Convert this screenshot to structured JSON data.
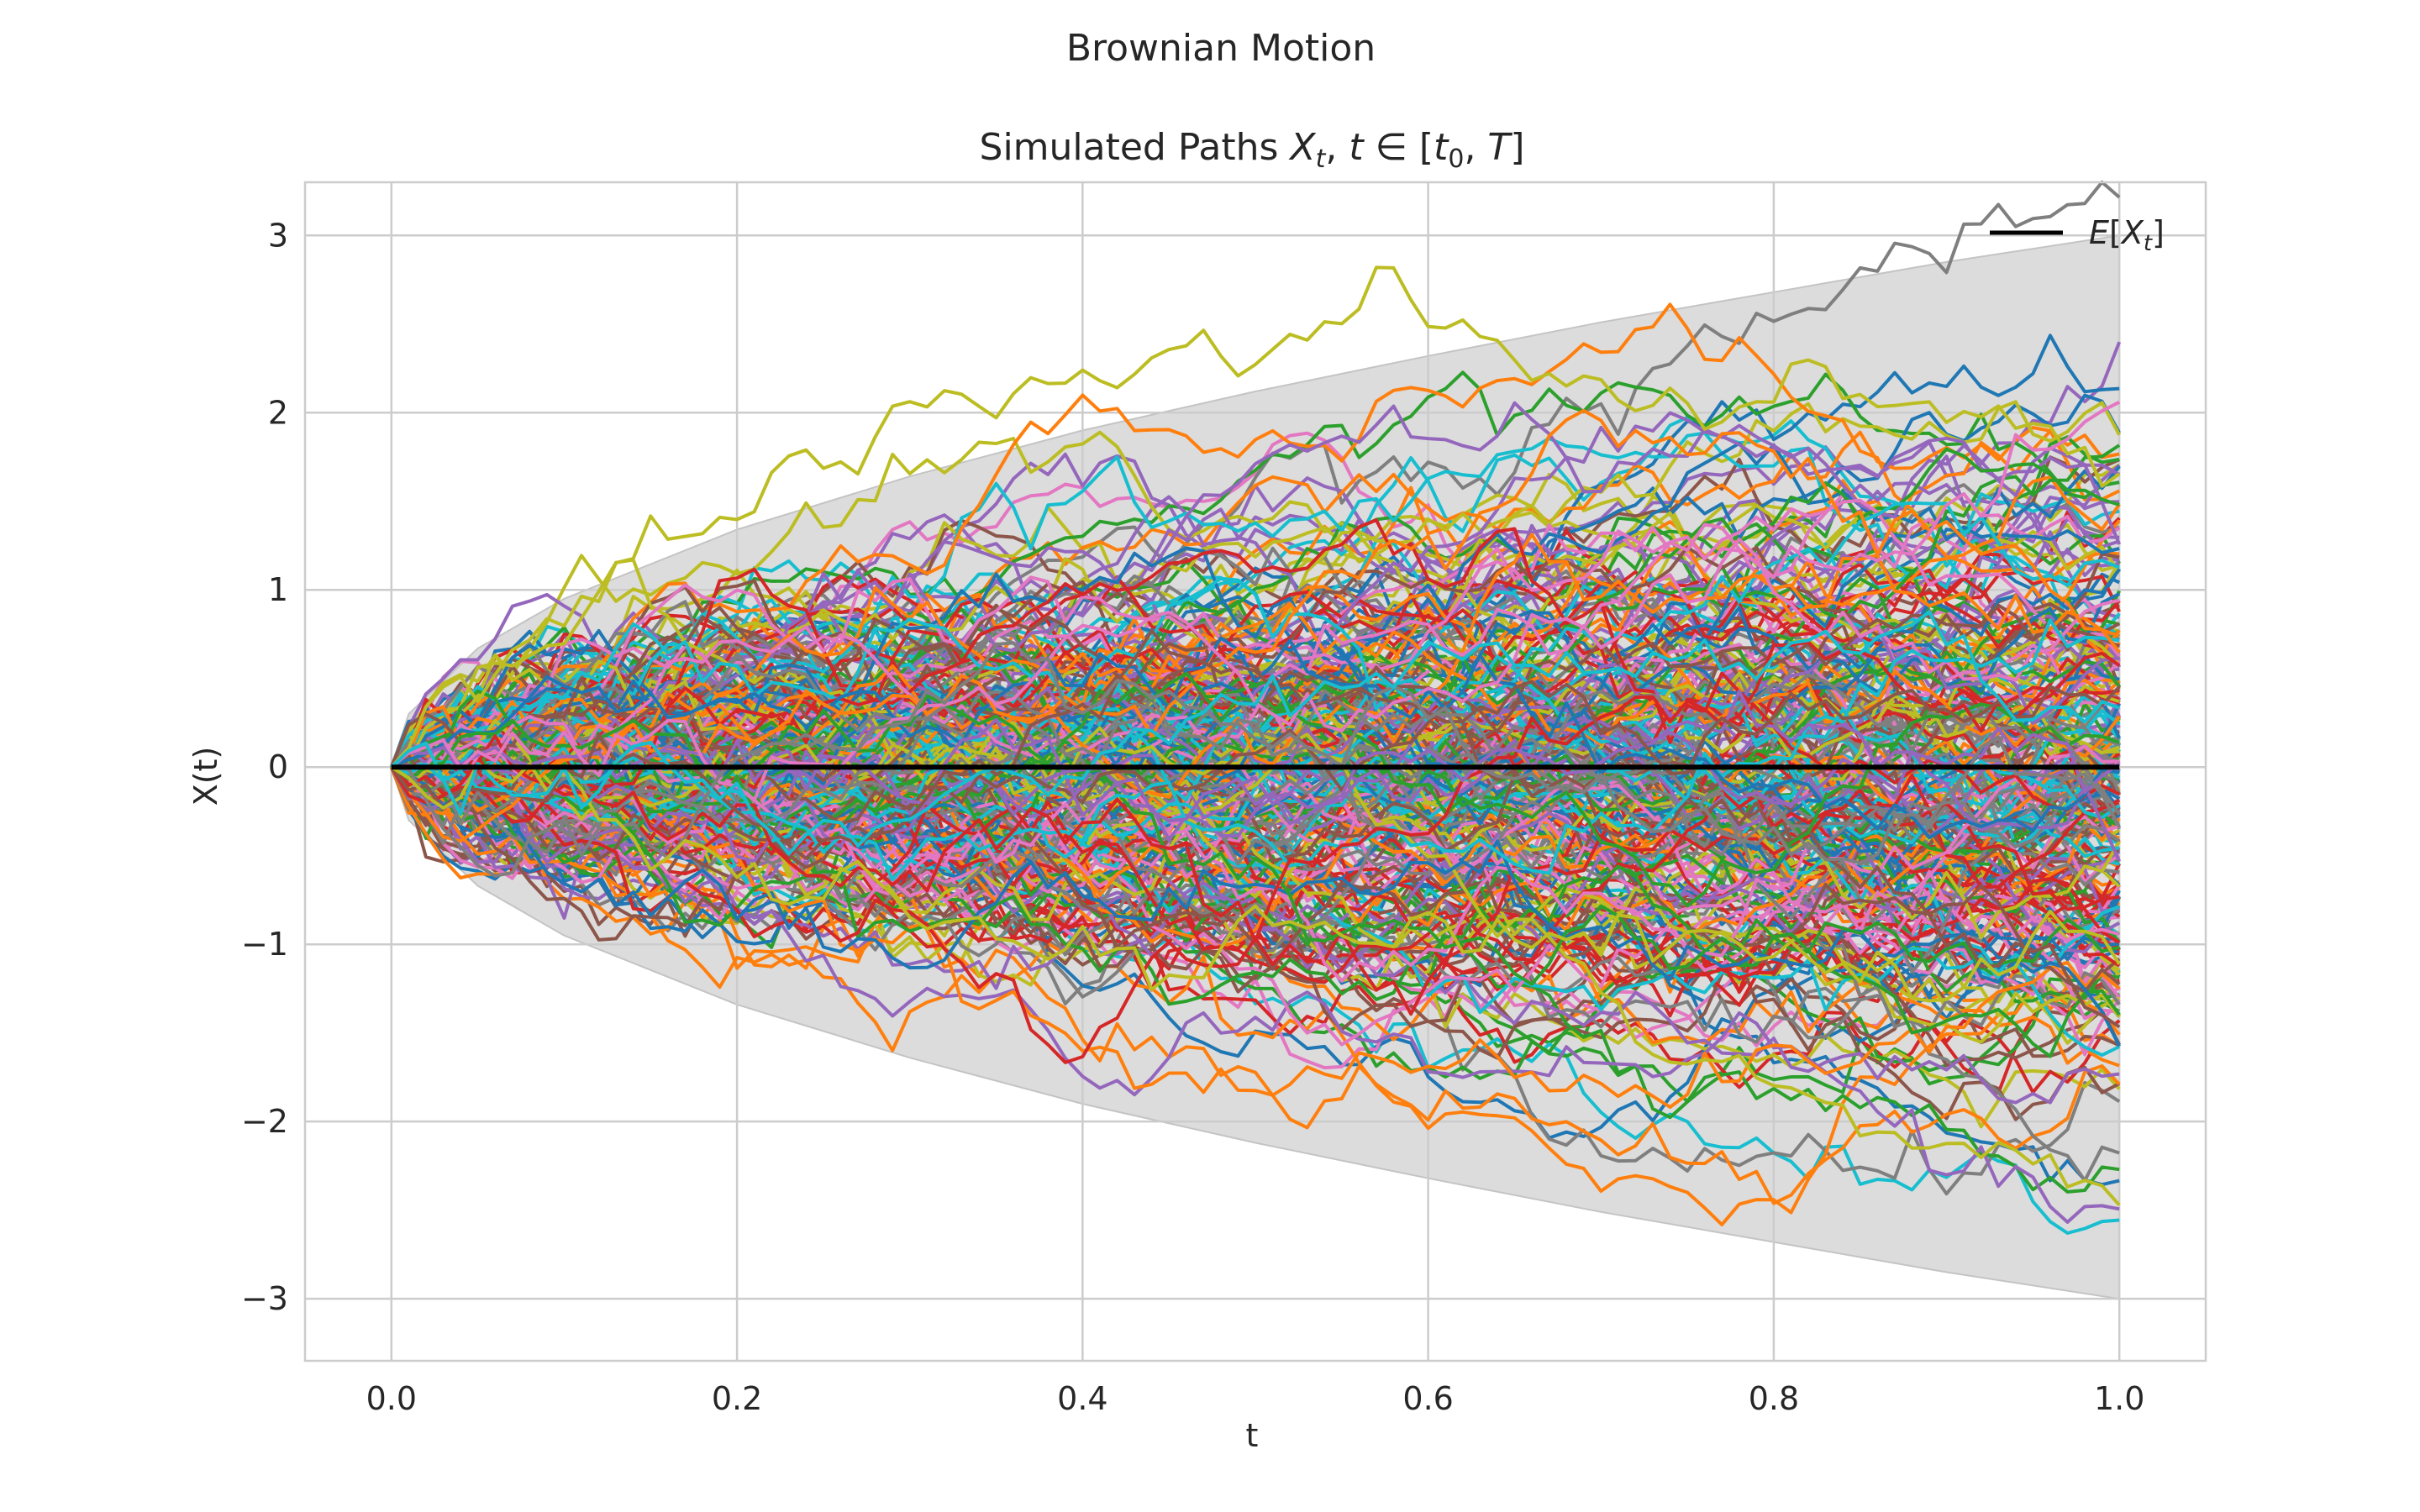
{
  "figure": {
    "suptitle": "Brownian Motion"
  },
  "chart_data": {
    "type": "line",
    "title_text": "Simulated Paths ",
    "title_math": {
      "var": "X",
      "sub": "t",
      "sep": ", ",
      "t": "t",
      "in": " ∈ ",
      "open": "[",
      "t0": "t",
      "t0_sub": "0",
      "comma": ", ",
      "T": "T",
      "close": "]"
    },
    "xlabel": "t",
    "ylabel": "X(t)",
    "xlim": [
      -0.05,
      1.05
    ],
    "ylim": [
      -3.35,
      3.3
    ],
    "xticks": [
      0.0,
      0.2,
      0.4,
      0.6,
      0.8,
      1.0
    ],
    "xtick_labels": [
      "0.0",
      "0.2",
      "0.4",
      "0.6",
      "0.8",
      "1.0"
    ],
    "yticks": [
      -3,
      -2,
      -1,
      0,
      1,
      2,
      3
    ],
    "ytick_labels": [
      "−3",
      "−2",
      "−1",
      "0",
      "1",
      "2",
      "3"
    ],
    "grid": true,
    "legend": {
      "placement": "top-right",
      "entries": [
        {
          "label_var": "E",
          "label_open": "[",
          "label_x": "X",
          "label_sub": "t",
          "label_close": "]",
          "color": "#000000"
        }
      ]
    },
    "mean": {
      "x": [
        0.0,
        1.0
      ],
      "y": [
        0.0,
        0.0
      ],
      "color": "#000000"
    },
    "envelope": {
      "description_free": true,
      "upper": {
        "x": [
          0.0,
          0.01,
          0.05,
          0.1,
          0.2,
          0.3,
          0.4,
          0.5,
          0.6,
          0.7,
          0.8,
          0.9,
          1.0
        ],
        "y": [
          0.0,
          0.3,
          0.67,
          0.95,
          1.34,
          1.64,
          1.9,
          2.12,
          2.32,
          2.51,
          2.68,
          2.85,
          3.0
        ]
      },
      "lower": {
        "x": [
          0.0,
          0.01,
          0.05,
          0.1,
          0.2,
          0.3,
          0.4,
          0.5,
          0.6,
          0.7,
          0.8,
          0.9,
          1.0
        ],
        "y": [
          0.0,
          -0.3,
          -0.67,
          -0.95,
          -1.34,
          -1.64,
          -1.9,
          -2.12,
          -2.32,
          -2.51,
          -2.68,
          -2.85,
          -3.0
        ]
      },
      "color": "#dcdcdc"
    },
    "paths": {
      "count": 300,
      "steps": 100,
      "t_start": 0.0,
      "t_end": 1.0,
      "x0": 0.0,
      "sigma": 1.0,
      "colors": [
        "#1f77b4",
        "#ff7f0e",
        "#2ca02c",
        "#d62728",
        "#9467bd",
        "#8c564b",
        "#e377c2",
        "#7f7f7f",
        "#bcbd22",
        "#17becf"
      ]
    },
    "colors": {
      "axes_edge": "#cccccc",
      "grid": "#cccccc",
      "text": "#262626",
      "background": "#ffffff"
    }
  }
}
